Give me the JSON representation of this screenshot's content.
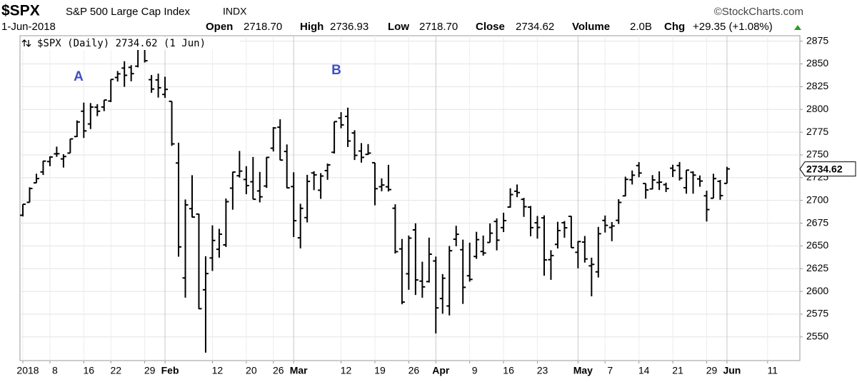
{
  "header": {
    "symbol": "$SPX",
    "name": "S&P 500 Large Cap Index",
    "exchange": "INDX",
    "brand": "©StockCharts.com",
    "date": "1-Jun-2018",
    "stats": [
      {
        "label": "Open",
        "value": "2718.70"
      },
      {
        "label": "High",
        "value": "2736.93"
      },
      {
        "label": "Low",
        "value": "2718.70"
      },
      {
        "label": "Close",
        "value": "2734.62"
      },
      {
        "label": "Volume",
        "value": "2.0B"
      },
      {
        "label": "Chg",
        "value": "+29.35 (+1.08%)"
      }
    ]
  },
  "chart_data": {
    "type": "ohlc",
    "legend": "$SPX (Daily) 2734.62 (1 Jun)",
    "annotations": [
      "A",
      "B"
    ],
    "last_price_label": "2734.62",
    "categories": [
      "2018-01-02",
      "2018-01-03",
      "2018-01-04",
      "2018-01-05",
      "2018-01-08",
      "2018-01-09",
      "2018-01-10",
      "2018-01-11",
      "2018-01-12",
      "2018-01-16",
      "2018-01-17",
      "2018-01-18",
      "2018-01-19",
      "2018-01-22",
      "2018-01-23",
      "2018-01-24",
      "2018-01-25",
      "2018-01-26",
      "2018-01-29",
      "2018-01-30",
      "2018-01-31",
      "2018-02-01",
      "2018-02-02",
      "2018-02-05",
      "2018-02-06",
      "2018-02-07",
      "2018-02-08",
      "2018-02-09",
      "2018-02-12",
      "2018-02-13",
      "2018-02-14",
      "2018-02-15",
      "2018-02-16",
      "2018-02-20",
      "2018-02-21",
      "2018-02-22",
      "2018-02-23",
      "2018-02-26",
      "2018-02-27",
      "2018-02-28",
      "2018-03-01",
      "2018-03-02",
      "2018-03-05",
      "2018-03-06",
      "2018-03-07",
      "2018-03-08",
      "2018-03-09",
      "2018-03-12",
      "2018-03-13",
      "2018-03-14",
      "2018-03-15",
      "2018-03-16",
      "2018-03-19",
      "2018-03-20",
      "2018-03-21",
      "2018-03-22",
      "2018-03-23",
      "2018-03-26",
      "2018-03-27",
      "2018-03-28",
      "2018-03-29",
      "2018-04-02",
      "2018-04-03",
      "2018-04-04",
      "2018-04-05",
      "2018-04-06",
      "2018-04-09",
      "2018-04-10",
      "2018-04-11",
      "2018-04-12",
      "2018-04-13",
      "2018-04-16",
      "2018-04-17",
      "2018-04-18",
      "2018-04-19",
      "2018-04-20",
      "2018-04-23",
      "2018-04-24",
      "2018-04-25",
      "2018-04-26",
      "2018-04-27",
      "2018-04-30",
      "2018-05-01",
      "2018-05-02",
      "2018-05-03",
      "2018-05-04",
      "2018-05-07",
      "2018-05-08",
      "2018-05-09",
      "2018-05-10",
      "2018-05-11",
      "2018-05-14",
      "2018-05-15",
      "2018-05-16",
      "2018-05-17",
      "2018-05-18",
      "2018-05-21",
      "2018-05-22",
      "2018-05-23",
      "2018-05-24",
      "2018-05-25",
      "2018-05-29",
      "2018-05-30",
      "2018-05-31",
      "2018-06-01"
    ],
    "open": [
      2683.7,
      2697.9,
      2719.3,
      2731.3,
      2742.7,
      2751.2,
      2745.6,
      2752.0,
      2770.2,
      2798.0,
      2784.0,
      2802.4,
      2802.6,
      2809.2,
      2835.1,
      2845.4,
      2846.2,
      2847.5,
      2867.2,
      2832.7,
      2832.4,
      2816.5,
      2808.9,
      2741.1,
      2614.8,
      2690.95,
      2685.0,
      2601.8,
      2636.75,
      2646.3,
      2651.2,
      2713.5,
      2727.1,
      2722.99,
      2720.5,
      2710.4,
      2715.8,
      2757.4,
      2780.45,
      2753.8,
      2715.2,
      2658.9,
      2681.1,
      2730.2,
      2711.2,
      2732.75,
      2752.9,
      2790.5,
      2792.3,
      2774.1,
      2754.3,
      2750.6,
      2741.4,
      2715.05,
      2714.99,
      2691.4,
      2646.7,
      2619.4,
      2667.6,
      2611.3,
      2610.8,
      2633.45,
      2592.2,
      2584.0,
      2657.4,
      2645.8,
      2617.2,
      2638.4,
      2643.9,
      2653.8,
      2676.9,
      2670.1,
      2692.7,
      2710.1,
      2701.2,
      2692.6,
      2675.4,
      2680.8,
      2634.9,
      2651.7,
      2675.5,
      2682.5,
      2643.0,
      2654.2,
      2628.1,
      2621.5,
      2678.0,
      2670.3,
      2678.1,
      2705.0,
      2722.7,
      2738.3,
      2718.6,
      2712.6,
      2719.7,
      2717.35,
      2735.4,
      2738.3,
      2713.98,
      2730.9,
      2723.6,
      2705.1,
      2702.4,
      2720.98,
      2718.7
    ],
    "high": [
      2695.9,
      2714.4,
      2729.3,
      2743.5,
      2748.5,
      2759.1,
      2750.8,
      2767.6,
      2787.9,
      2807.5,
      2807.0,
      2805.8,
      2810.3,
      2833.0,
      2842.2,
      2852.97,
      2848.6,
      2872.9,
      2870.6,
      2837.8,
      2839.3,
      2835.96,
      2808.9,
      2763.4,
      2701.0,
      2727.7,
      2685.3,
      2638.7,
      2672.6,
      2668.8,
      2702.1,
      2731.5,
      2754.4,
      2737.6,
      2747.75,
      2731.3,
      2747.8,
      2780.6,
      2789.15,
      2761.5,
      2730.9,
      2696.3,
      2728.1,
      2732.1,
      2730.0,
      2740.5,
      2786.6,
      2796.98,
      2801.9,
      2777.1,
      2763.0,
      2761.9,
      2741.4,
      2724.2,
      2739.1,
      2695.7,
      2657.7,
      2661.4,
      2674.8,
      2632.65,
      2659.1,
      2638.3,
      2619.1,
      2649.9,
      2672.1,
      2656.9,
      2653.6,
      2665.5,
      2661.4,
      2674.7,
      2680.3,
      2686.5,
      2713.3,
      2717.5,
      2702.8,
      2693.9,
      2682.9,
      2683.6,
      2645.3,
      2676.5,
      2677.35,
      2682.9,
      2655.3,
      2660.9,
      2637.1,
      2670.9,
      2683.4,
      2676.3,
      2701.3,
      2726.1,
      2732.9,
      2742.1,
      2718.6,
      2727.8,
      2731.96,
      2719.5,
      2739.2,
      2742.2,
      2733.3,
      2731.97,
      2727.4,
      2710.7,
      2729.3,
      2722.5,
      2736.93
    ],
    "low": [
      2682.4,
      2697.8,
      2719.1,
      2727.9,
      2737.6,
      2747.9,
      2736.1,
      2752.0,
      2769.6,
      2768.6,
      2778.4,
      2792.6,
      2798.1,
      2808.1,
      2830.6,
      2824.8,
      2830.9,
      2846.2,
      2851.5,
      2818.3,
      2813.0,
      2812.7,
      2759.97,
      2638.2,
      2593.1,
      2681.3,
      2580.6,
      2532.7,
      2622.45,
      2637.1,
      2648.9,
      2689.8,
      2725.1,
      2706.8,
      2701.3,
      2697.8,
      2713.7,
      2753.8,
      2744.2,
      2713.5,
      2659.7,
      2647.3,
      2675.8,
      2711.3,
      2701.7,
      2722.65,
      2751.5,
      2779.3,
      2758.7,
      2744.4,
      2741.5,
      2749.97,
      2694.6,
      2710.05,
      2709.8,
      2641.6,
      2585.9,
      2601.8,
      2596.1,
      2593.06,
      2609.7,
      2553.8,
      2575.5,
      2573.6,
      2649.6,
      2586.3,
      2610.8,
      2635.8,
      2639.3,
      2653.8,
      2645.1,
      2665.2,
      2692.1,
      2703.6,
      2681.9,
      2660.6,
      2657.99,
      2617.3,
      2612.7,
      2647.2,
      2659.0,
      2648.0,
      2625.4,
      2631.7,
      2594.6,
      2615.3,
      2664.7,
      2655.2,
      2674.1,
      2704.5,
      2717.5,
      2725.5,
      2701.9,
      2712.2,
      2711.4,
      2709.2,
      2725.7,
      2721.9,
      2707.4,
      2707.4,
      2714.99,
      2676.8,
      2702.4,
      2700.7,
      2718.7
    ],
    "close": [
      2695.8,
      2713.1,
      2724.0,
      2743.2,
      2747.7,
      2751.3,
      2748.2,
      2767.6,
      2786.2,
      2776.4,
      2802.6,
      2798.0,
      2810.3,
      2833.0,
      2839.1,
      2837.5,
      2839.3,
      2872.9,
      2853.5,
      2822.4,
      2823.8,
      2822.0,
      2762.1,
      2648.9,
      2695.1,
      2681.7,
      2581.0,
      2619.6,
      2656.0,
      2662.9,
      2698.6,
      2731.2,
      2732.2,
      2716.3,
      2701.3,
      2703.96,
      2747.3,
      2779.6,
      2744.3,
      2713.8,
      2677.7,
      2691.3,
      2720.9,
      2728.1,
      2726.8,
      2739.0,
      2786.6,
      2783.0,
      2765.3,
      2749.5,
      2747.3,
      2752.0,
      2712.9,
      2716.9,
      2711.9,
      2643.7,
      2588.3,
      2658.6,
      2612.6,
      2605.0,
      2640.9,
      2581.9,
      2614.5,
      2644.7,
      2662.8,
      2604.5,
      2613.2,
      2656.9,
      2642.2,
      2664.0,
      2656.3,
      2677.8,
      2706.4,
      2708.6,
      2693.1,
      2670.1,
      2670.3,
      2634.6,
      2639.4,
      2666.9,
      2669.9,
      2648.1,
      2654.8,
      2635.7,
      2629.7,
      2663.4,
      2672.6,
      2671.9,
      2697.8,
      2723.1,
      2727.7,
      2730.1,
      2711.5,
      2722.5,
      2720.1,
      2713.0,
      2733.0,
      2724.4,
      2733.3,
      2727.8,
      2721.3,
      2689.9,
      2724.0,
      2705.3,
      2734.62
    ],
    "color": "#000000",
    "ylim": [
      2524,
      2881
    ],
    "yticks": [
      2550,
      2575,
      2600,
      2625,
      2650,
      2675,
      2700,
      2725,
      2750,
      2775,
      2800,
      2825,
      2850,
      2875
    ],
    "xticks": [
      {
        "value": "2018-01-02",
        "label": "2018"
      },
      {
        "value": "2018-01-08",
        "label": "8"
      },
      {
        "value": "2018-01-16",
        "label": "16"
      },
      {
        "value": "2018-01-22",
        "label": "22"
      },
      {
        "value": "2018-01-29",
        "label": "29"
      },
      {
        "value": "2018-02-01",
        "label": "Feb"
      },
      {
        "value": "2018-02-12",
        "label": "12"
      },
      {
        "value": "2018-02-20",
        "label": "20"
      },
      {
        "value": "2018-02-26",
        "label": "26"
      },
      {
        "value": "2018-03-01",
        "label": "Mar"
      },
      {
        "value": "2018-03-12",
        "label": "12"
      },
      {
        "value": "2018-03-19",
        "label": "19"
      },
      {
        "value": "2018-03-26",
        "label": "26"
      },
      {
        "value": "2018-04-02",
        "label": "Apr"
      },
      {
        "value": "2018-04-09",
        "label": "9"
      },
      {
        "value": "2018-04-16",
        "label": "16"
      },
      {
        "value": "2018-04-23",
        "label": "23"
      },
      {
        "value": "2018-05-01",
        "label": "May"
      },
      {
        "value": "2018-05-07",
        "label": "7"
      },
      {
        "value": "2018-05-14",
        "label": "14"
      },
      {
        "value": "2018-05-21",
        "label": "21"
      },
      {
        "value": "2018-05-29",
        "label": "29"
      },
      {
        "value": "2018-06-01",
        "label": "Jun"
      },
      {
        "value": "2018-06-11",
        "label": "11"
      }
    ],
    "grid": true
  }
}
